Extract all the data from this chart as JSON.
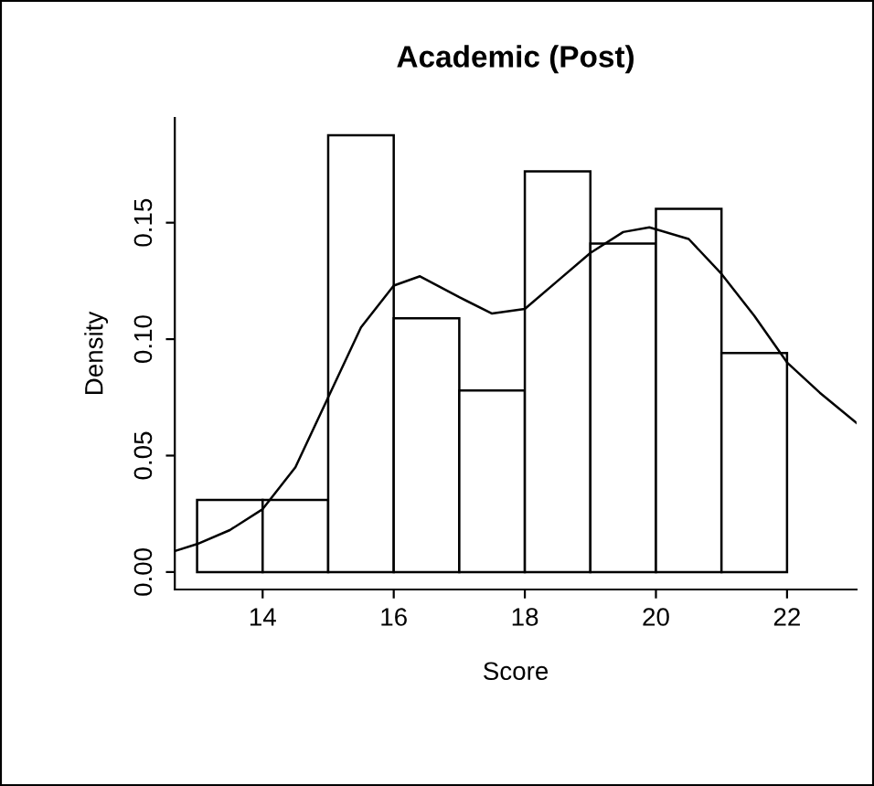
{
  "chart_data": {
    "type": "histogram",
    "title": "Academic (Post)",
    "xlabel": "Score",
    "ylabel": "Density",
    "bins": [
      13,
      14,
      15,
      16,
      17,
      18,
      19,
      20,
      21,
      22
    ],
    "values": [
      0.031,
      0.031,
      0.1875,
      0.109,
      0.078,
      0.172,
      0.141,
      0.156,
      0.094
    ],
    "color": "#ffffff",
    "series": [
      {
        "type": "line",
        "color": "#000000",
        "x": [
          12.66,
          13.0,
          13.5,
          14.0,
          14.5,
          15.0,
          15.5,
          16.0,
          16.4,
          17.0,
          17.5,
          18.0,
          18.5,
          19.0,
          19.5,
          19.9,
          20.5,
          21.0,
          21.5,
          22.0,
          22.5,
          23.06
        ],
        "values": [
          0.009,
          0.012,
          0.018,
          0.027,
          0.045,
          0.075,
          0.105,
          0.123,
          0.127,
          0.118,
          0.111,
          0.113,
          0.125,
          0.137,
          0.146,
          0.148,
          0.143,
          0.128,
          0.11,
          0.09,
          0.077,
          0.064
        ]
      }
    ],
    "xlim": [
      12.66,
      23.06
    ],
    "ylim": [
      -0.0075,
      0.195
    ],
    "xticks": [
      14,
      16,
      18,
      20,
      22
    ],
    "yticks": [
      {
        "value": 0,
        "label": "0.00"
      },
      {
        "value": 0.05,
        "label": "0.05"
      },
      {
        "value": 0.1,
        "label": "0.10"
      },
      {
        "value": 0.15,
        "label": "0.15"
      }
    ],
    "grid": false,
    "legend": false
  }
}
